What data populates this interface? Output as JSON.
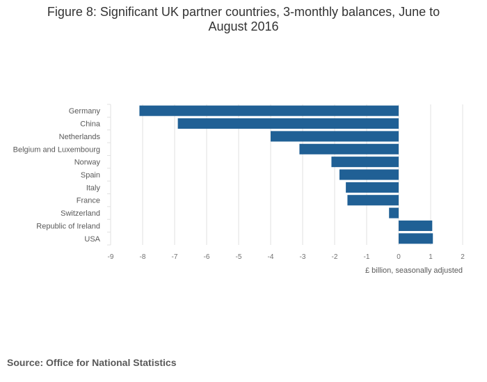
{
  "title": "Figure 8: Significant UK partner countries, 3-monthly balances, June to August 2016",
  "source": "Source: Office for National Statistics",
  "chart_data": {
    "type": "bar",
    "orientation": "horizontal",
    "title": "Figure 8: Significant UK partner countries, 3-monthly balances, June to August 2016",
    "xlabel": "£ billion, seasonally adjusted",
    "ylabel": "",
    "categories": [
      "Germany",
      "China",
      "Netherlands",
      "Belgium and Luxembourg",
      "Norway",
      "Spain",
      "Italy",
      "France",
      "Switzerland",
      "Republic of Ireland",
      "USA"
    ],
    "values": [
      -8.1,
      -6.9,
      -4.0,
      -3.1,
      -2.1,
      -1.85,
      -1.65,
      -1.6,
      -0.3,
      1.05,
      1.07
    ],
    "xlim": [
      -9,
      2
    ],
    "xticks": [
      "-9",
      "-8",
      "-7",
      "-6",
      "-5",
      "-4",
      "-3",
      "-2",
      "-1",
      "0",
      "1",
      "2"
    ],
    "bar_color": "#206095",
    "grid_color": "#e0e0e0",
    "grid": true
  }
}
